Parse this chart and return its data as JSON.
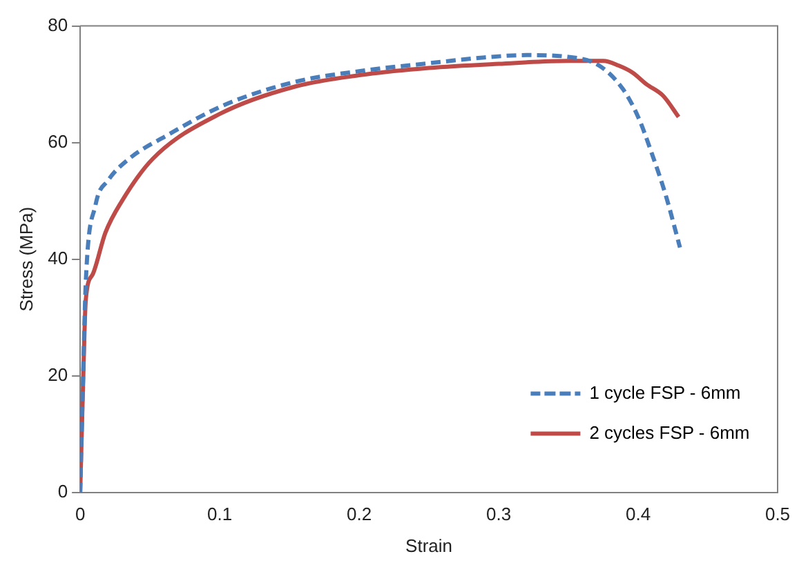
{
  "chart_data": {
    "type": "line",
    "xlabel": "Strain",
    "ylabel": "Stress (MPa)",
    "xlim": [
      0,
      0.5
    ],
    "xticks": [
      0,
      0.1,
      0.2,
      0.3,
      0.4,
      0.5
    ],
    "ylim": [
      0,
      80
    ],
    "yticks": [
      0,
      20,
      40,
      60,
      80
    ],
    "grid": false,
    "legend": "bottom right",
    "marker": "none",
    "series": [
      {
        "name": "1 cycle FSP - 6mm",
        "color": "#4a7ebb",
        "line_style": "dashed",
        "x": [
          0,
          0.002,
          0.004,
          0.011,
          0.02,
          0.035,
          0.062,
          0.103,
          0.154,
          0.205,
          0.25,
          0.29,
          0.32,
          0.35,
          0.372,
          0.389,
          0.4,
          0.41,
          0.42,
          0.43
        ],
        "values": [
          0,
          19,
          36,
          49.3,
          53.5,
          57.2,
          61.2,
          66.4,
          70.4,
          72.4,
          73.6,
          74.6,
          75,
          74.7,
          73.2,
          69.2,
          64.4,
          58,
          50.8,
          42
        ]
      },
      {
        "name": "2 cycles FSP - 6mm",
        "color": "#be4b48",
        "line_style": "solid",
        "x": [
          0,
          0.002,
          0.004,
          0.009,
          0.018,
          0.03,
          0.052,
          0.1,
          0.154,
          0.205,
          0.25,
          0.3,
          0.35,
          0.375,
          0.386,
          0.396,
          0.406,
          0.418,
          0.429
        ],
        "values": [
          0,
          18,
          33,
          37.4,
          44.5,
          50,
          57.2,
          64.9,
          69.6,
          71.7,
          72.8,
          73.5,
          74,
          74,
          73.2,
          72,
          70,
          68,
          64.4
        ]
      }
    ]
  }
}
